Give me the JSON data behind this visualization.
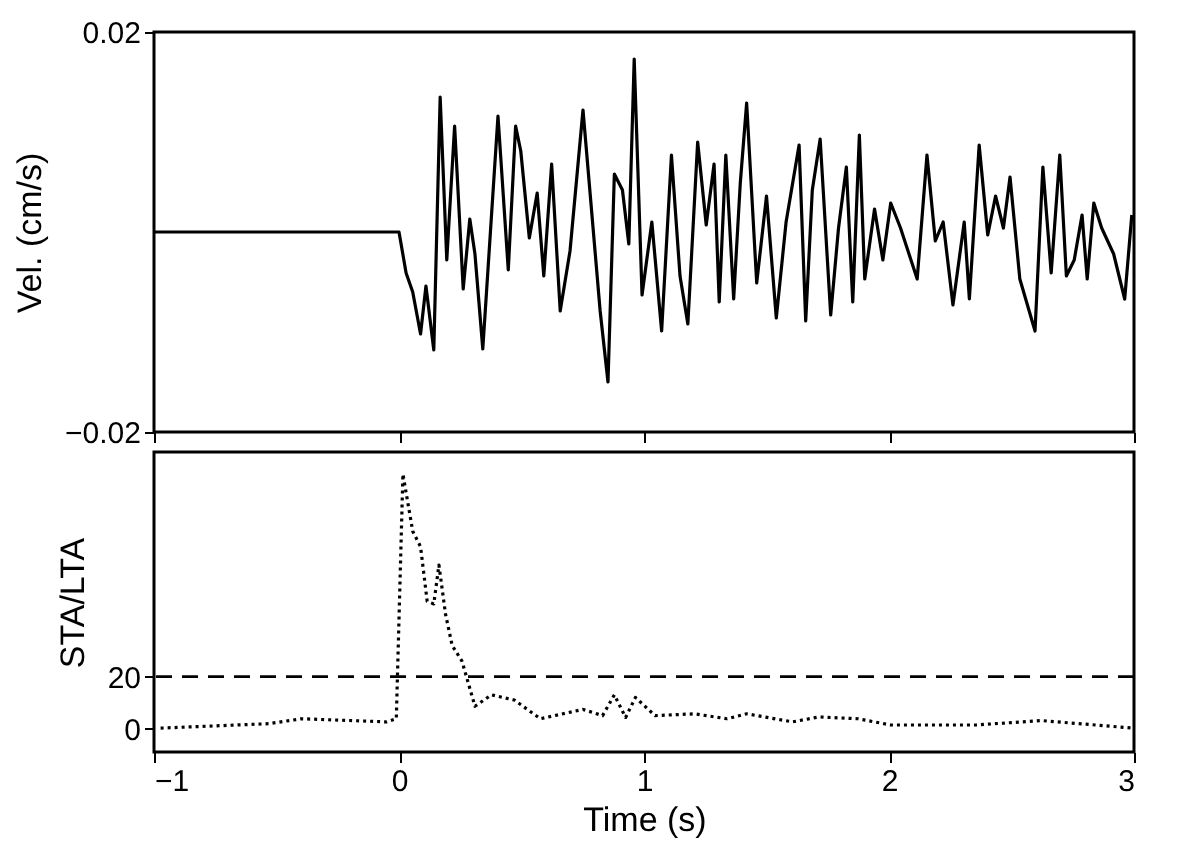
{
  "chart_data": [
    {
      "type": "line",
      "ylabel": "Vel. (cm/s)",
      "xlim": [
        -1,
        3
      ],
      "xticks": [
        {
          "value": -1,
          "label": null
        },
        {
          "value": 0,
          "label": null
        },
        {
          "value": 1,
          "label": null
        },
        {
          "value": 2,
          "label": null
        },
        {
          "value": 3,
          "label": null
        }
      ],
      "ylim": [
        -0.02,
        0.02
      ],
      "yticks": [
        {
          "value": -0.02,
          "label": "−0.02"
        },
        0.02
      ],
      "tick_labels": "y",
      "line_style": "solid",
      "grid": false,
      "series": [
        {
          "color": "#000000",
          "x": [
            -1,
            0.0,
            0.029,
            0.056,
            0.088,
            0.11,
            0.142,
            0.168,
            0.195,
            0.227,
            0.262,
            0.289,
            0.31,
            0.342,
            0.404,
            0.446,
            0.476,
            0.497,
            0.532,
            0.564,
            0.591,
            0.623,
            0.658,
            0.698,
            0.751,
            0.821,
            0.853,
            0.879,
            0.912,
            0.938,
            0.96,
            0.992,
            1.032,
            1.072,
            1.112,
            1.147,
            1.179,
            1.219,
            1.254,
            1.286,
            1.307,
            1.334,
            1.366,
            1.393,
            1.419,
            1.46,
            1.5,
            1.54,
            1.58,
            1.633,
            1.66,
            1.687,
            1.719,
            1.762,
            1.794,
            1.826,
            1.852,
            1.879,
            1.901,
            1.941,
            1.975,
            2.007,
            2.047,
            2.115,
            2.155,
            2.189,
            2.221,
            2.261,
            2.307,
            2.328,
            2.368,
            2.403,
            2.435,
            2.467,
            2.494,
            2.534,
            2.596,
            2.628,
            2.662,
            2.697,
            2.724,
            2.756,
            2.788,
            2.809,
            2.836,
            2.868,
            2.917,
            2.962,
            2.991
          ],
          "values": [
            0,
            0,
            -0.0041,
            -0.006,
            -0.0102,
            -0.0054,
            -0.0118,
            0.0135,
            -0.0028,
            0.0106,
            -0.0057,
            0.0013,
            -0.0022,
            -0.0117,
            0.0116,
            -0.0038,
            0.0106,
            0.0081,
            -0.0006,
            0.0039,
            -0.0044,
            0.0068,
            -0.0079,
            -0.0019,
            0.0122,
            -0.0079,
            -0.015,
            0.0058,
            0.0042,
            -0.0012,
            0.0173,
            -0.0063,
            0.001,
            -0.0099,
            0.0077,
            -0.0044,
            -0.0092,
            0.009,
            0.0007,
            0.0068,
            -0.007,
            0.0077,
            -0.0067,
            0.0049,
            0.0129,
            -0.0051,
            0.0036,
            -0.0086,
            0.001,
            0.0087,
            -0.0089,
            0.0042,
            0.0093,
            -0.0083,
            0.0004,
            0.0065,
            -0.007,
            0.0097,
            -0.0047,
            0.0023,
            -0.0028,
            0.0029,
            0.0004,
            -0.0047,
            0.0077,
            -0.0009,
            0.001,
            -0.0073,
            0.001,
            -0.0067,
            0.0087,
            -0.0003,
            0.0036,
            0.0004,
            0.0055,
            -0.0047,
            -0.0099,
            0.0065,
            -0.0041,
            0.0077,
            -0.0044,
            -0.0028,
            0.0017,
            -0.0047,
            0.0029,
            0.0004,
            -0.0022,
            -0.0067,
            0.0017
          ]
        }
      ]
    },
    {
      "type": "line",
      "xlabel": "Time (s)",
      "ylabel": "STA/LTA",
      "xlim": [
        -1,
        3
      ],
      "xticks": [
        {
          "value": -1,
          "label": "−1"
        },
        0,
        1,
        2,
        3
      ],
      "ylim": [
        -9,
        106.5
      ],
      "yticks": [
        0,
        20
      ],
      "line_style": "dotted",
      "grid": false,
      "ref_lines": [
        {
          "axis": "y",
          "value": 20,
          "color": "#000000",
          "line_style": "dashed"
        }
      ],
      "series": [
        {
          "color": "#000000",
          "x": [
            -0.973,
            -0.532,
            -0.398,
            -0.051,
            -0.011,
            0.016,
            0.056,
            0.088,
            0.115,
            0.142,
            0.163,
            0.19,
            0.217,
            0.257,
            0.31,
            0.377,
            0.471,
            0.577,
            0.751,
            0.831,
            0.879,
            0.925,
            0.965,
            1.045,
            1.205,
            1.339,
            1.419,
            1.606,
            1.714,
            1.874,
            2.007,
            2.355,
            2.622,
            2.997
          ],
          "values": [
            0.2,
            1.9,
            3.8,
            2.6,
            3.8,
            98,
            76,
            70,
            49,
            48,
            63,
            44,
            32,
            26,
            8.6,
            13,
            11,
            3.8,
            7.4,
            5,
            13,
            4.3,
            12,
            5,
            5.7,
            3.8,
            5.7,
            2.6,
            4.5,
            3.8,
            1.4,
            1.4,
            3.1,
            0.2
          ]
        }
      ]
    }
  ]
}
